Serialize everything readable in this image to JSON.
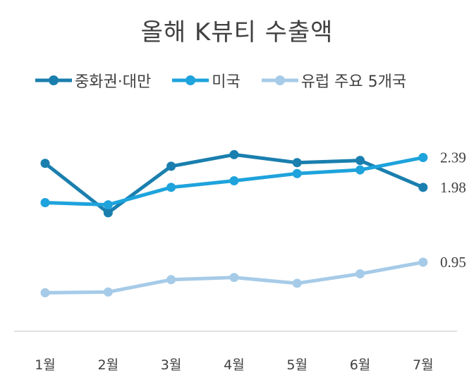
{
  "chart_data": {
    "type": "line",
    "title": "올해 K뷰티 수출액",
    "categories": [
      "1월",
      "2월",
      "3월",
      "4월",
      "5월",
      "6월",
      "7월"
    ],
    "series": [
      {
        "name": "중화권·대만",
        "color": "#1a7fae",
        "values": [
          2.31,
          1.63,
          2.27,
          2.43,
          2.32,
          2.35,
          1.98
        ],
        "end_label": "1.98"
      },
      {
        "name": "미국",
        "color": "#1ea3dc",
        "values": [
          1.77,
          1.74,
          1.98,
          2.07,
          2.17,
          2.22,
          2.39
        ],
        "end_label": "2.39"
      },
      {
        "name": "유럽 주요 5개국",
        "color": "#a6cbe8",
        "values": [
          0.53,
          0.54,
          0.71,
          0.74,
          0.66,
          0.79,
          0.95
        ],
        "end_label": "0.95"
      }
    ],
    "ylim": [
      0,
      3.2
    ],
    "grid": false,
    "legend_position": "top"
  }
}
